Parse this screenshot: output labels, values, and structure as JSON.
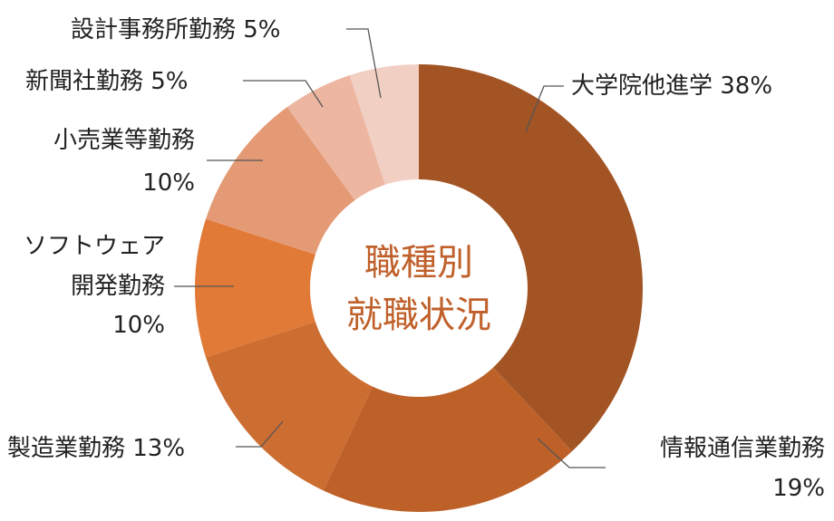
{
  "chart_data": {
    "type": "pie",
    "title_lines": [
      "職種別",
      "就職状況"
    ],
    "categories": [
      "大学院他進学",
      "情報通信業勤務",
      "製造業勤務",
      "ソフトウェア開発勤務",
      "小売業等勤務",
      "新聞社勤務",
      "設計事務所勤務"
    ],
    "values": [
      38,
      19,
      13,
      10,
      10,
      5,
      5
    ],
    "unit": "%",
    "colors": [
      "#A25425",
      "#BD6129",
      "#CC6D31",
      "#E07A36",
      "#E59A76",
      "#EDB6A1",
      "#F2CFC3"
    ],
    "labels": [
      {
        "lines": [
          "大学院他進学 38%"
        ]
      },
      {
        "lines": [
          "情報通信業勤務",
          "19%"
        ]
      },
      {
        "lines": [
          "製造業勤務 13%"
        ]
      },
      {
        "lines": [
          "ソフトウェア",
          "開発勤務",
          "10%"
        ]
      },
      {
        "lines": [
          "小売業等勤務",
          "10%"
        ]
      },
      {
        "lines": [
          "新聞社勤務 5%"
        ]
      },
      {
        "lines": [
          "設計事務所勤務 5%"
        ]
      }
    ],
    "title_color": "#C0602A"
  }
}
